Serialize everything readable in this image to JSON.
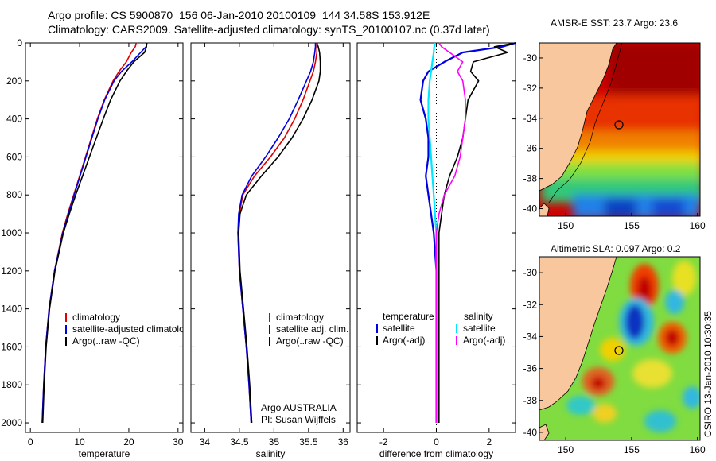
{
  "title": {
    "line1": "Argo profile: CS 5900870_156 06-Jan-2010 20100109_144 34.58S 153.912E",
    "line2": "Climatology: CARS2009. Satellite-adjusted climatology: synTS_20100107.nc (0.37d later)"
  },
  "side_label": "CSIRO 13-Jan-2010 10:30:35",
  "colors": {
    "climatology": "#e00000",
    "satellite": "#0000e0",
    "argo": "#000000",
    "sat_diff_t": "#00e8ff",
    "argo_diff_s": "#ff00ff",
    "land": "#f9c79d"
  },
  "chart_data": [
    {
      "type": "line",
      "name": "temperature",
      "xlabel": "temperature",
      "xlim": [
        -1,
        31
      ],
      "xticks": [
        "0",
        "10",
        "20",
        "30"
      ],
      "ylim": [
        2050,
        0
      ],
      "yticks": [
        "0",
        "200",
        "400",
        "600",
        "800",
        "1000",
        "1200",
        "1400",
        "1600",
        "1800",
        "2000"
      ],
      "depth": [
        0,
        20,
        50,
        100,
        150,
        200,
        300,
        400,
        500,
        600,
        700,
        800,
        900,
        1000,
        1200,
        1400,
        1600,
        1800,
        2000
      ],
      "series": [
        {
          "name": "climatology",
          "color_key": "climatology",
          "values": [
            21.5,
            21.3,
            20.5,
            19.5,
            18.0,
            16.8,
            15.0,
            13.6,
            12.4,
            11.2,
            10.0,
            8.8,
            7.6,
            6.5,
            4.9,
            3.8,
            3.1,
            2.7,
            2.4
          ]
        },
        {
          "name": "satellite-adjusted climatology",
          "color_key": "satellite",
          "values": [
            23.7,
            23.5,
            22.4,
            20.6,
            18.5,
            17.0,
            15.1,
            13.7,
            12.5,
            11.3,
            10.1,
            8.9,
            7.7,
            6.6,
            4.9,
            3.8,
            3.1,
            2.7,
            2.4
          ]
        },
        {
          "name": "Argo(..raw -QC)",
          "color_key": "argo",
          "values": [
            23.6,
            23.6,
            23.2,
            21.0,
            19.5,
            18.2,
            16.3,
            14.8,
            13.4,
            12.0,
            10.6,
            9.2,
            7.9,
            6.7,
            5.0,
            3.9,
            3.2,
            2.8,
            2.5
          ]
        }
      ],
      "legend": {
        "placement": "lower-middle",
        "entries": [
          "climatology",
          "satellite-adjusted climatology",
          "Argo(..raw -QC)"
        ]
      }
    },
    {
      "type": "line",
      "name": "salinity",
      "xlabel": "salinity",
      "xlim": [
        33.8,
        36.1
      ],
      "xticks": [
        "34",
        "34.5",
        "35",
        "35.5",
        "36"
      ],
      "ylim": [
        2050,
        0
      ],
      "depth": [
        0,
        20,
        50,
        100,
        150,
        200,
        300,
        400,
        500,
        600,
        700,
        800,
        900,
        1000,
        1200,
        1400,
        1600,
        1800,
        2000
      ],
      "series": [
        {
          "name": "climatology",
          "color_key": "climatology",
          "values": [
            35.62,
            35.62,
            35.62,
            35.6,
            35.57,
            35.52,
            35.42,
            35.3,
            35.15,
            34.95,
            34.72,
            34.55,
            34.5,
            34.48,
            34.5,
            34.55,
            34.6,
            34.64,
            34.67
          ]
        },
        {
          "name": "satellite adj. clim.",
          "color_key": "satellite",
          "values": [
            35.6,
            35.6,
            35.59,
            35.57,
            35.53,
            35.47,
            35.35,
            35.22,
            35.06,
            34.88,
            34.68,
            34.54,
            34.49,
            34.48,
            34.5,
            34.55,
            34.6,
            34.64,
            34.67
          ]
        },
        {
          "name": "Argo(..raw -QC)",
          "color_key": "argo",
          "values": [
            35.62,
            35.64,
            35.66,
            35.67,
            35.67,
            35.65,
            35.55,
            35.42,
            35.26,
            35.06,
            34.82,
            34.6,
            34.51,
            34.49,
            34.51,
            34.56,
            34.61,
            34.65,
            34.68
          ]
        }
      ],
      "legend": {
        "placement": "lower-middle",
        "entries": [
          "climatology",
          "satellite adj. clim.",
          "Argo(..raw -QC)"
        ]
      },
      "annotation": {
        "line1": "Argo AUSTRALIA",
        "line2": "PI: Susan Wijffels"
      }
    },
    {
      "type": "line",
      "name": "difference",
      "xlabel": "difference from climatology",
      "xlim": [
        -3,
        3
      ],
      "xticks": [
        "-2",
        "0",
        "2"
      ],
      "ylim": [
        2050,
        0
      ],
      "depth": [
        0,
        20,
        50,
        100,
        150,
        200,
        300,
        400,
        500,
        600,
        700,
        800,
        900,
        1000,
        1200,
        1400,
        1600,
        1800,
        2000
      ],
      "series": [
        {
          "name": "temperature satellite",
          "color_key": "satellite",
          "values": [
            3.0,
            2.5,
            1.0,
            0.3,
            -0.3,
            -0.5,
            -0.6,
            -0.4,
            -0.3,
            -0.3,
            -0.4,
            -0.3,
            -0.2,
            -0.1,
            0.0,
            0.0,
            0.0,
            0.0,
            0.0
          ]
        },
        {
          "name": "temperature Argo(-adj)",
          "color_key": "argo",
          "values": [
            3.0,
            2.2,
            2.7,
            1.4,
            1.3,
            1.6,
            1.2,
            1.1,
            1.0,
            0.8,
            0.5,
            0.3,
            0.2,
            0.1,
            0.1,
            0.1,
            0.1,
            0.1,
            0.1
          ]
        },
        {
          "name": "salinity satellite",
          "color_key": "sat_diff_t",
          "values": [
            -0.05,
            -0.08,
            -0.1,
            -0.15,
            -0.2,
            -0.25,
            -0.3,
            -0.3,
            -0.25,
            -0.2,
            -0.15,
            -0.1,
            -0.05,
            0.0,
            0.0,
            0.0,
            0.0,
            0.0,
            0.0
          ]
        },
        {
          "name": "salinity Argo(-adj)",
          "color_key": "argo_diff_s",
          "values": [
            0.1,
            0.2,
            0.5,
            1.0,
            0.8,
            1.0,
            1.1,
            1.1,
            1.0,
            0.9,
            0.7,
            0.3,
            0.1,
            0.0,
            0.0,
            0.0,
            0.0,
            0.0,
            0.0
          ]
        }
      ],
      "legend": {
        "placement": "lower-middle",
        "left_title": "temperature",
        "right_title": "salinity",
        "left_entries": [
          "satellite",
          "Argo(-adj)"
        ],
        "right_entries": [
          "satellite",
          "Argo(-adj)"
        ]
      }
    },
    {
      "type": "heatmap",
      "name": "sst-map",
      "title": "AMSR-E SST: 23.7 Argo: 23.6",
      "xlim": [
        148,
        160.2
      ],
      "ylim": [
        -40.5,
        -29
      ],
      "xticks": [
        "150",
        "155",
        "160"
      ],
      "yticks": [
        "-30",
        "-32",
        "-34",
        "-36",
        "-38",
        "-40"
      ],
      "profile_marker": {
        "lon": 153.912,
        "lat": -34.58
      }
    },
    {
      "type": "heatmap",
      "name": "sla-map",
      "title": "Altimetric SLA: 0.097 Argo: 0.2",
      "xlim": [
        148,
        160.2
      ],
      "ylim": [
        -40.5,
        -29
      ],
      "xticks": [
        "150",
        "155",
        "160"
      ],
      "yticks": [
        "-30",
        "-32",
        "-34",
        "-36",
        "-38",
        "-40"
      ],
      "profile_marker": {
        "lon": 153.912,
        "lat": -34.58
      }
    }
  ]
}
